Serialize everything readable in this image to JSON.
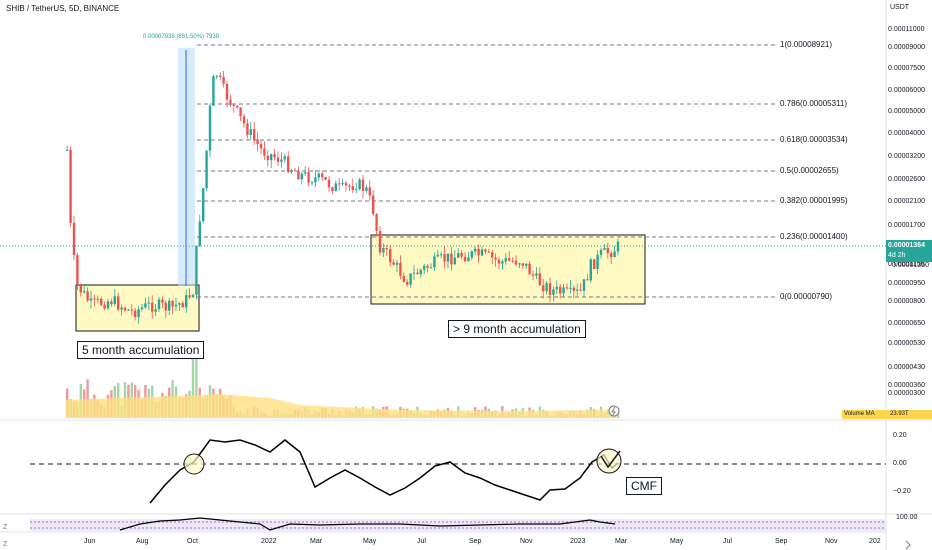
{
  "header": {
    "symbol": "SHIB / TetherUS, 5D, BINANCE",
    "currency": "USDT"
  },
  "price_axis": [
    "0.00011000",
    "0.00009000",
    "0.00007500",
    "0.00006000",
    "0.00005000",
    "0.00004000",
    "0.00003200",
    "0.00002600",
    "0.00002100",
    "0.00001700",
    "0.00001150",
    "0.00000950",
    "0.00000800",
    "0.00000650",
    "0.00000530",
    "0.00000430",
    "0.00000360",
    "0.00000300"
  ],
  "current_price": {
    "value": "0.00001364",
    "countdown": "4d 2h",
    "next": "0.00001350"
  },
  "fib_levels": [
    {
      "label": "1(0.00008921)"
    },
    {
      "label": "0.786(0.00005311)"
    },
    {
      "label": "0.618(0.00003534)"
    },
    {
      "label": "0.5(0.00002655)"
    },
    {
      "label": "0.382(0.00001995)"
    },
    {
      "label": "0.236(0.00001400)"
    },
    {
      "label": "0(0.00000790)"
    }
  ],
  "measure_label": "0.00007938 (851.50%) 7938",
  "annotations": {
    "left": "5 month accumulation",
    "right": "> 9 month accumulation",
    "cmf": "CMF"
  },
  "volume": {
    "label": "Volume MA",
    "value": "23.93T"
  },
  "cmf_axis": [
    "0.20",
    "0.00",
    "−0.20"
  ],
  "osc_axis": [
    "100.00"
  ],
  "time_axis": [
    "Jun",
    "Aug",
    "Oct",
    "2022",
    "Mar",
    "May",
    "Jul",
    "Sep",
    "Nov",
    "2023",
    "Mar",
    "May",
    "Jul",
    "Sep",
    "Nov",
    "202"
  ],
  "colors": {
    "up": "#26a69a",
    "down": "#ef5350",
    "fib": "#787b86",
    "box_fill": "#fff9c4",
    "vol_ma": "#ffe082"
  }
}
